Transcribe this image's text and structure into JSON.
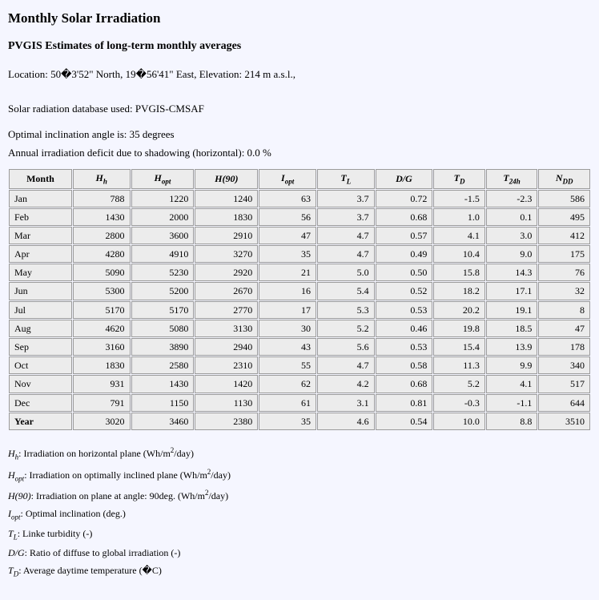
{
  "title": "Monthly Solar Irradiation",
  "subtitle": "PVGIS Estimates of long-term monthly averages",
  "location": "Location: 50�3'52\" North, 19�56'41\" East, Elevation: 214 m a.s.l.,",
  "database": "Solar radiation database used: PVGIS-CMSAF",
  "optimal": "Optimal inclination angle is: 35 degrees",
  "deficit": "Annual irradiation deficit due to shadowing (horizontal): 0.0 %",
  "columns": [
    "Month",
    "H_h",
    "H_opt",
    "H(90)",
    "I_opt",
    "T_L",
    "D/G",
    "T_D",
    "T_24h",
    "N_DD"
  ],
  "rows": [
    [
      "Jan",
      "788",
      "1220",
      "1240",
      "63",
      "3.7",
      "0.72",
      "-1.5",
      "-2.3",
      "586"
    ],
    [
      "Feb",
      "1430",
      "2000",
      "1830",
      "56",
      "3.7",
      "0.68",
      "1.0",
      "0.1",
      "495"
    ],
    [
      "Mar",
      "2800",
      "3600",
      "2910",
      "47",
      "4.7",
      "0.57",
      "4.1",
      "3.0",
      "412"
    ],
    [
      "Apr",
      "4280",
      "4910",
      "3270",
      "35",
      "4.7",
      "0.49",
      "10.4",
      "9.0",
      "175"
    ],
    [
      "May",
      "5090",
      "5230",
      "2920",
      "21",
      "5.0",
      "0.50",
      "15.8",
      "14.3",
      "76"
    ],
    [
      "Jun",
      "5300",
      "5200",
      "2670",
      "16",
      "5.4",
      "0.52",
      "18.2",
      "17.1",
      "32"
    ],
    [
      "Jul",
      "5170",
      "5170",
      "2770",
      "17",
      "5.3",
      "0.53",
      "20.2",
      "19.1",
      "8"
    ],
    [
      "Aug",
      "4620",
      "5080",
      "3130",
      "30",
      "5.2",
      "0.46",
      "19.8",
      "18.5",
      "47"
    ],
    [
      "Sep",
      "3160",
      "3890",
      "2940",
      "43",
      "5.6",
      "0.53",
      "15.4",
      "13.9",
      "178"
    ],
    [
      "Oct",
      "1830",
      "2580",
      "2310",
      "55",
      "4.7",
      "0.58",
      "11.3",
      "9.9",
      "340"
    ],
    [
      "Nov",
      "931",
      "1430",
      "1420",
      "62",
      "4.2",
      "0.68",
      "5.2",
      "4.1",
      "517"
    ],
    [
      "Dec",
      "791",
      "1150",
      "1130",
      "61",
      "3.1",
      "0.81",
      "-0.3",
      "-1.1",
      "644"
    ],
    [
      "Year",
      "3020",
      "3460",
      "2380",
      "35",
      "4.6",
      "0.54",
      "10.0",
      "8.8",
      "3510"
    ]
  ],
  "defs": [
    {
      "sym": "H_h",
      "text": "Irradiation on horizontal plane (Wh/m^2/day)"
    },
    {
      "sym": "H_opt",
      "text": "Irradiation on optimally inclined plane (Wh/m^2/day)"
    },
    {
      "sym": "H(90)",
      "text": "Irradiation on plane at angle: 90deg. (Wh/m^2/day)"
    },
    {
      "sym": "I_opt",
      "text": "Optimal inclination (deg.)"
    },
    {
      "sym": "T_L",
      "text": "Linke turbidity (-)"
    },
    {
      "sym": "D/G",
      "text": "Ratio of diffuse to global irradiation (-)"
    },
    {
      "sym": "T_D",
      "text": "Average daytime temperature (�C)"
    }
  ],
  "style": {
    "background": "#f5f6ff",
    "cell_bg": "#ececec",
    "cell_border": "#9b9b9b",
    "font_family": "Times New Roman",
    "title_fontsize": 17,
    "subtitle_fontsize": 14,
    "body_fontsize": 13,
    "table_fontsize": 12
  }
}
